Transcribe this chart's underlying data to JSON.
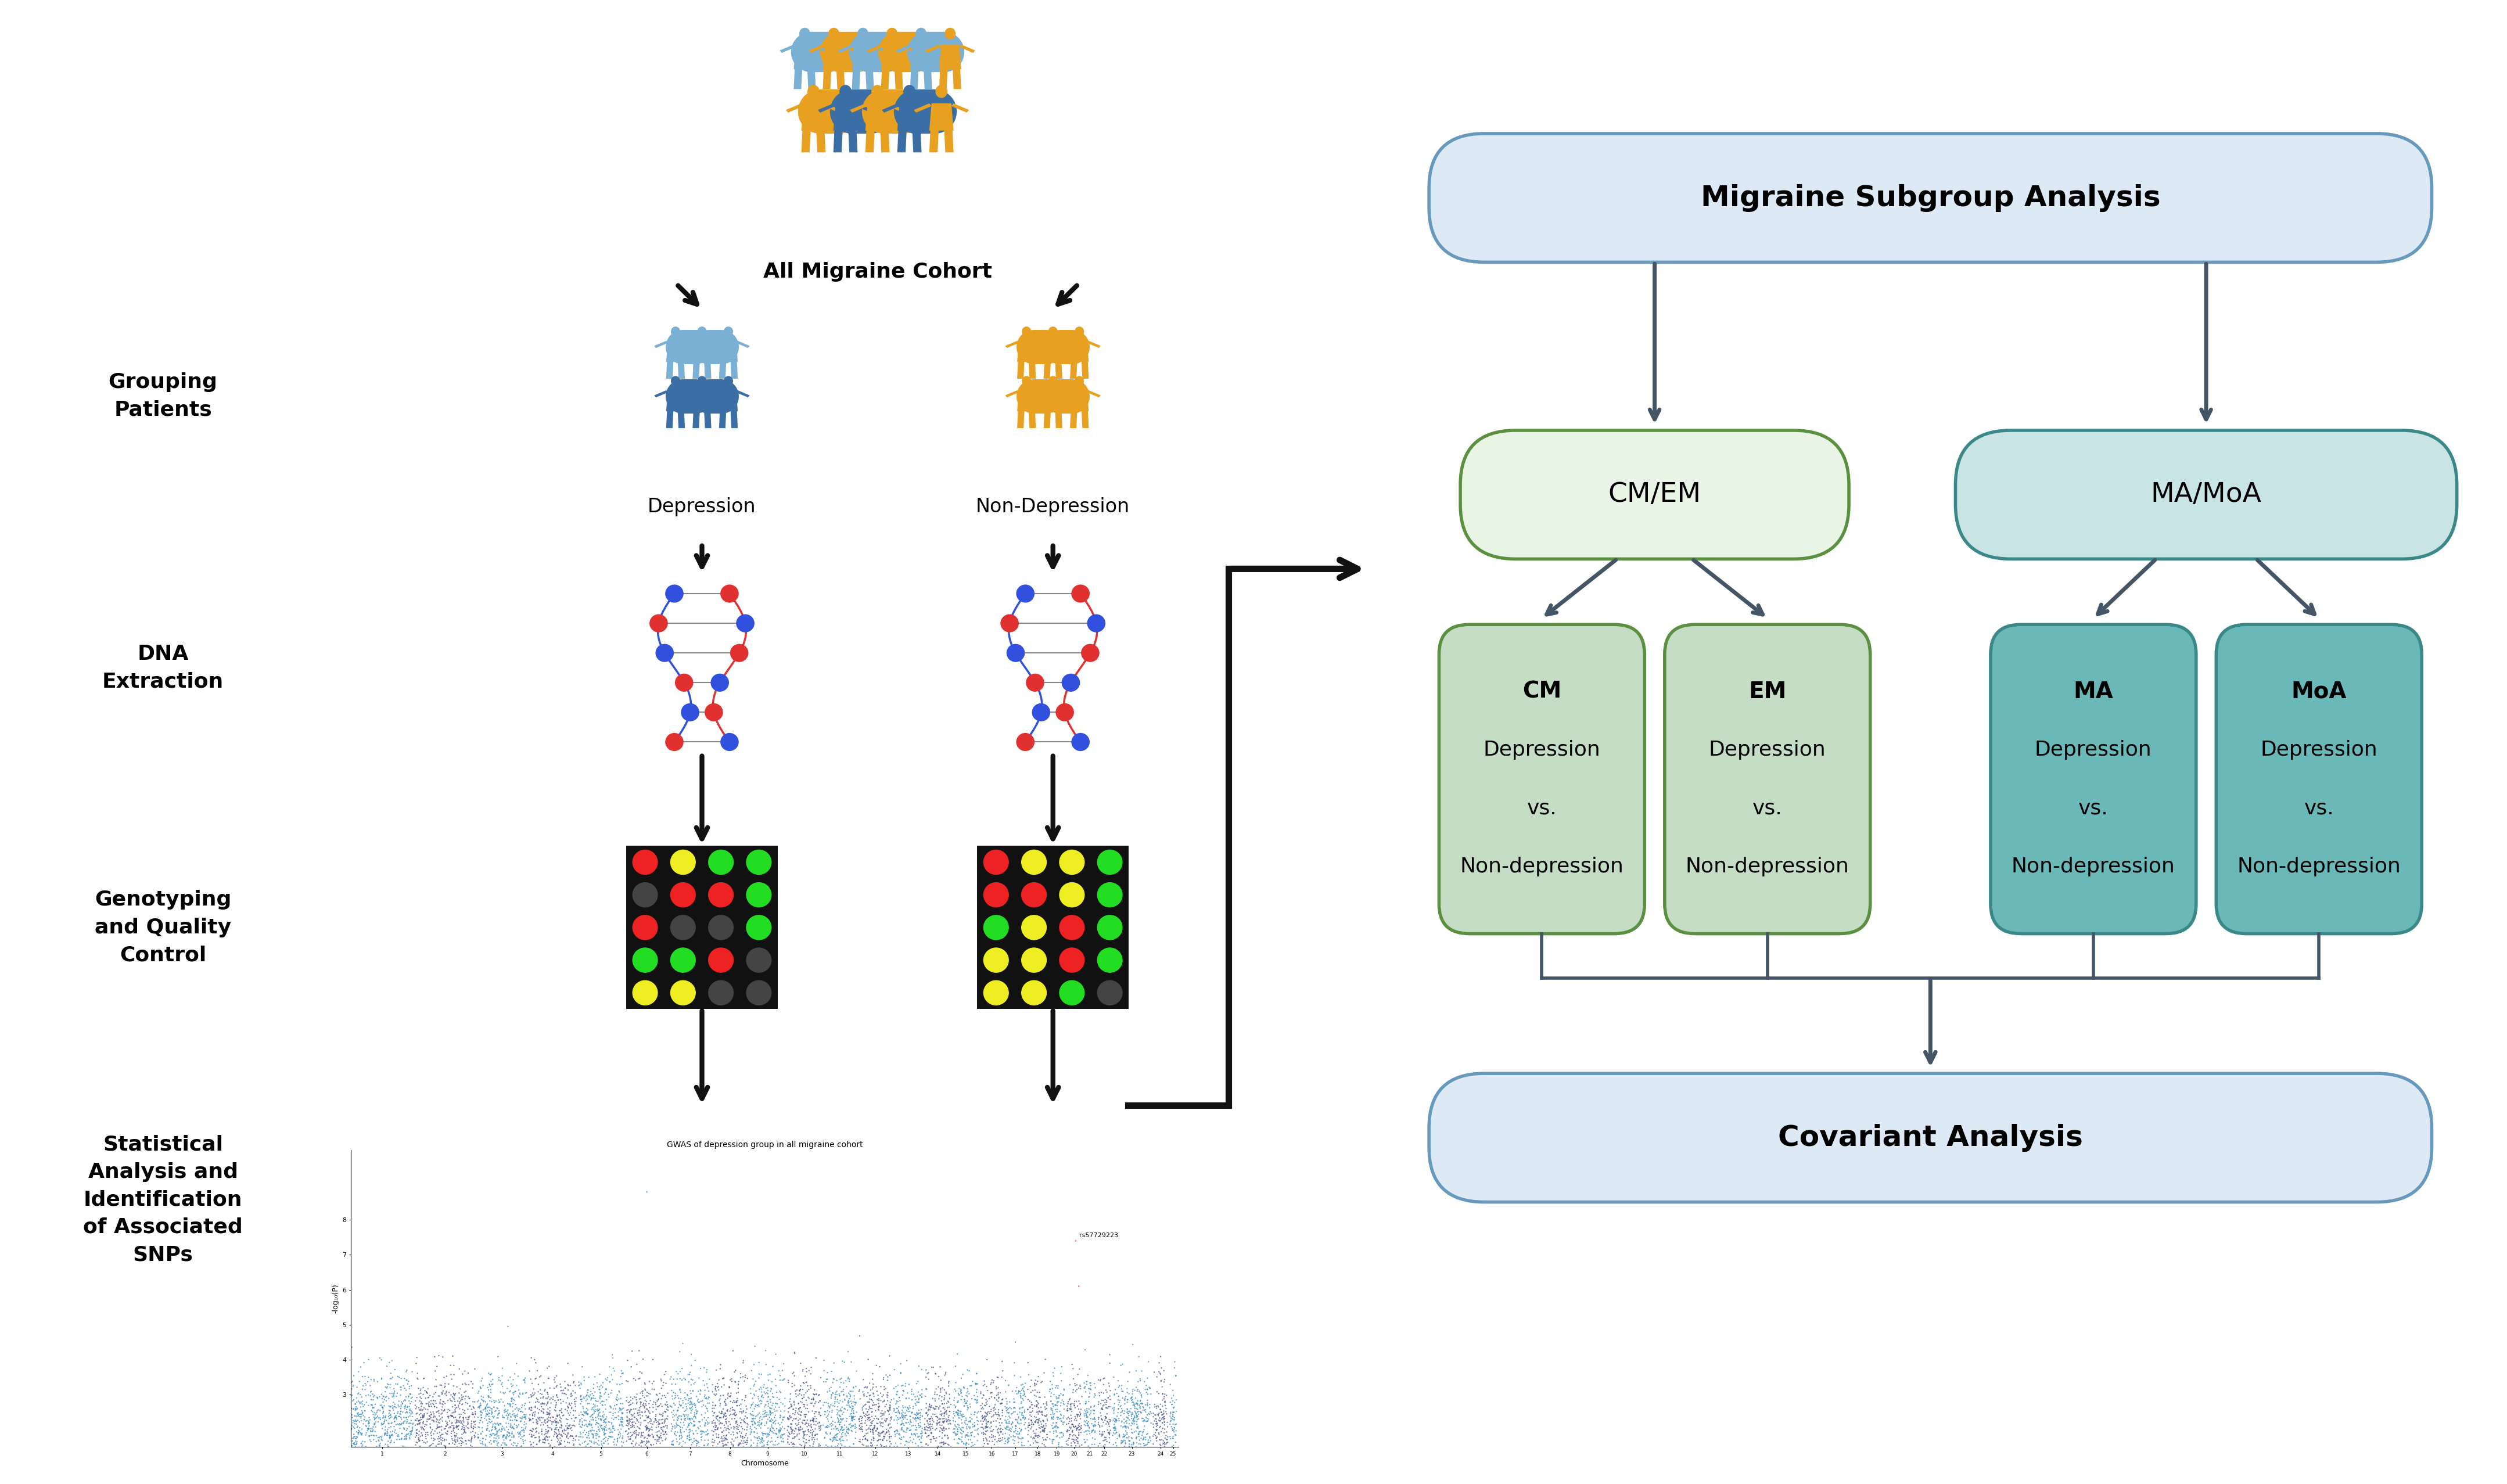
{
  "bg_color": "#ffffff",
  "arrow_color_dark": "#111111",
  "arrow_color_flow": "#445566",
  "left_labels": {
    "grouping": "Grouping\nPatients",
    "dna": "DNA\nExtraction",
    "genotyping": "Genotyping\nand Quality\nControl",
    "stats": "Statistical\nAnalysis and\nIdentification\nof Associated\nSNPs"
  },
  "cohort_label": "All Migraine Cohort",
  "depression_label": "Depression",
  "nondepression_label": "Non-Depression",
  "person_colors": {
    "blue_dark": "#3b6ea5",
    "blue_light": "#7ab0d4",
    "orange": "#e8a020"
  },
  "right_boxes": {
    "migraine_subgroup": {
      "text": "Migraine Subgroup Analysis",
      "bg": "#ddeaf6",
      "border": "#6699bb",
      "fontsize": 36,
      "bold": true
    },
    "cm_em": {
      "text": "CM/EM",
      "bg": "#e8f4e4",
      "border": "#5a9040",
      "fontsize": 34,
      "bold": false
    },
    "ma_moa": {
      "text": "MA/MoA",
      "bg": "#c8e4e4",
      "border": "#3a8888",
      "fontsize": 34,
      "bold": false
    },
    "cm": {
      "text": "CM\nDepression\nvs.\nNon-depression",
      "bg": "#c4ddc4",
      "border": "#5a9040",
      "fontsize": 28,
      "bold_first": true
    },
    "em": {
      "text": "EM\nDepression\nvs.\nNon-depression",
      "bg": "#c4ddc4",
      "border": "#5a9040",
      "fontsize": 28,
      "bold_first": true
    },
    "ma": {
      "text": "MA\nDepression\nvs.\nNon-depression",
      "bg": "#6ab8b8",
      "border": "#3a8888",
      "fontsize": 28,
      "bold_first": true
    },
    "moa": {
      "text": "MoA\nDepression\nvs.\nNon-depression",
      "bg": "#6ab8b8",
      "border": "#3a8888",
      "fontsize": 28,
      "bold_first": true
    },
    "covariant": {
      "text": "Covariant Analysis",
      "bg": "#ddeaf6",
      "border": "#6699bb",
      "fontsize": 36,
      "bold": true
    }
  },
  "gwas_title": "GWAS of depression group in all migraine cohort",
  "gwas_snp_label": "rs57729223",
  "gwas_ylabel": "-log₁₀(P)"
}
